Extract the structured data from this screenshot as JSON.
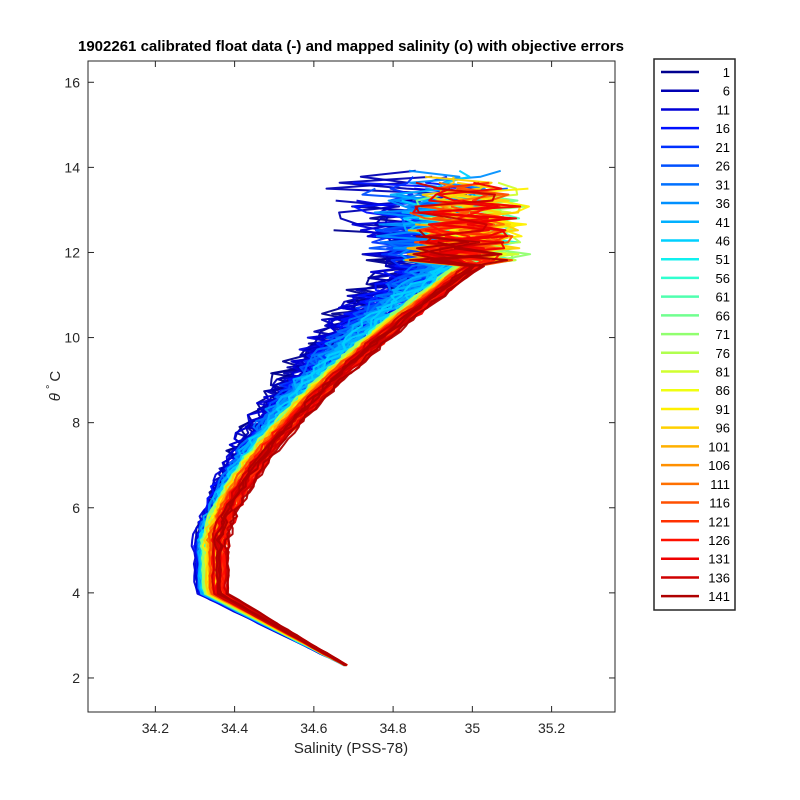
{
  "chart_data": {
    "type": "line",
    "title": "1902261 calibrated float data (-) and mapped salinity (o) with objective errors",
    "xlabel": "Salinity (PSS-78)",
    "ylabel_symbol": "θ",
    "ylabel_unit": "C",
    "xlim": [
      34.03,
      35.36
    ],
    "ylim": [
      1.2,
      16.5
    ],
    "xticks": [
      "34.2",
      "34.4",
      "34.6",
      "34.8",
      "35",
      "35.2"
    ],
    "yticks": [
      "2",
      "4",
      "6",
      "8",
      "10",
      "12",
      "14",
      "16"
    ],
    "legend_position": "outside-right",
    "legend_entries": [
      "1",
      "6",
      "11",
      "16",
      "21",
      "26",
      "31",
      "36",
      "41",
      "46",
      "51",
      "56",
      "61",
      "66",
      "71",
      "76",
      "81",
      "86",
      "91",
      "96",
      "101",
      "106",
      "111",
      "116",
      "121",
      "126",
      "131",
      "136",
      "141"
    ],
    "colors": [
      "#00008f",
      "#0000b3",
      "#0000d6",
      "#0010ff",
      "#0030ff",
      "#0050ff",
      "#0070ff",
      "#0090ff",
      "#00b0ff",
      "#00d0ff",
      "#10f0ef",
      "#30ffcf",
      "#50ffaf",
      "#70ff8f",
      "#90ff6f",
      "#b0ff4f",
      "#d0ff2f",
      "#f0ff10",
      "#fff000",
      "#ffd000",
      "#ffb000",
      "#ff9000",
      "#ff7000",
      "#ff5000",
      "#ff3000",
      "#ff1000",
      "#ef0000",
      "#cf0000",
      "#af0000"
    ]
  }
}
